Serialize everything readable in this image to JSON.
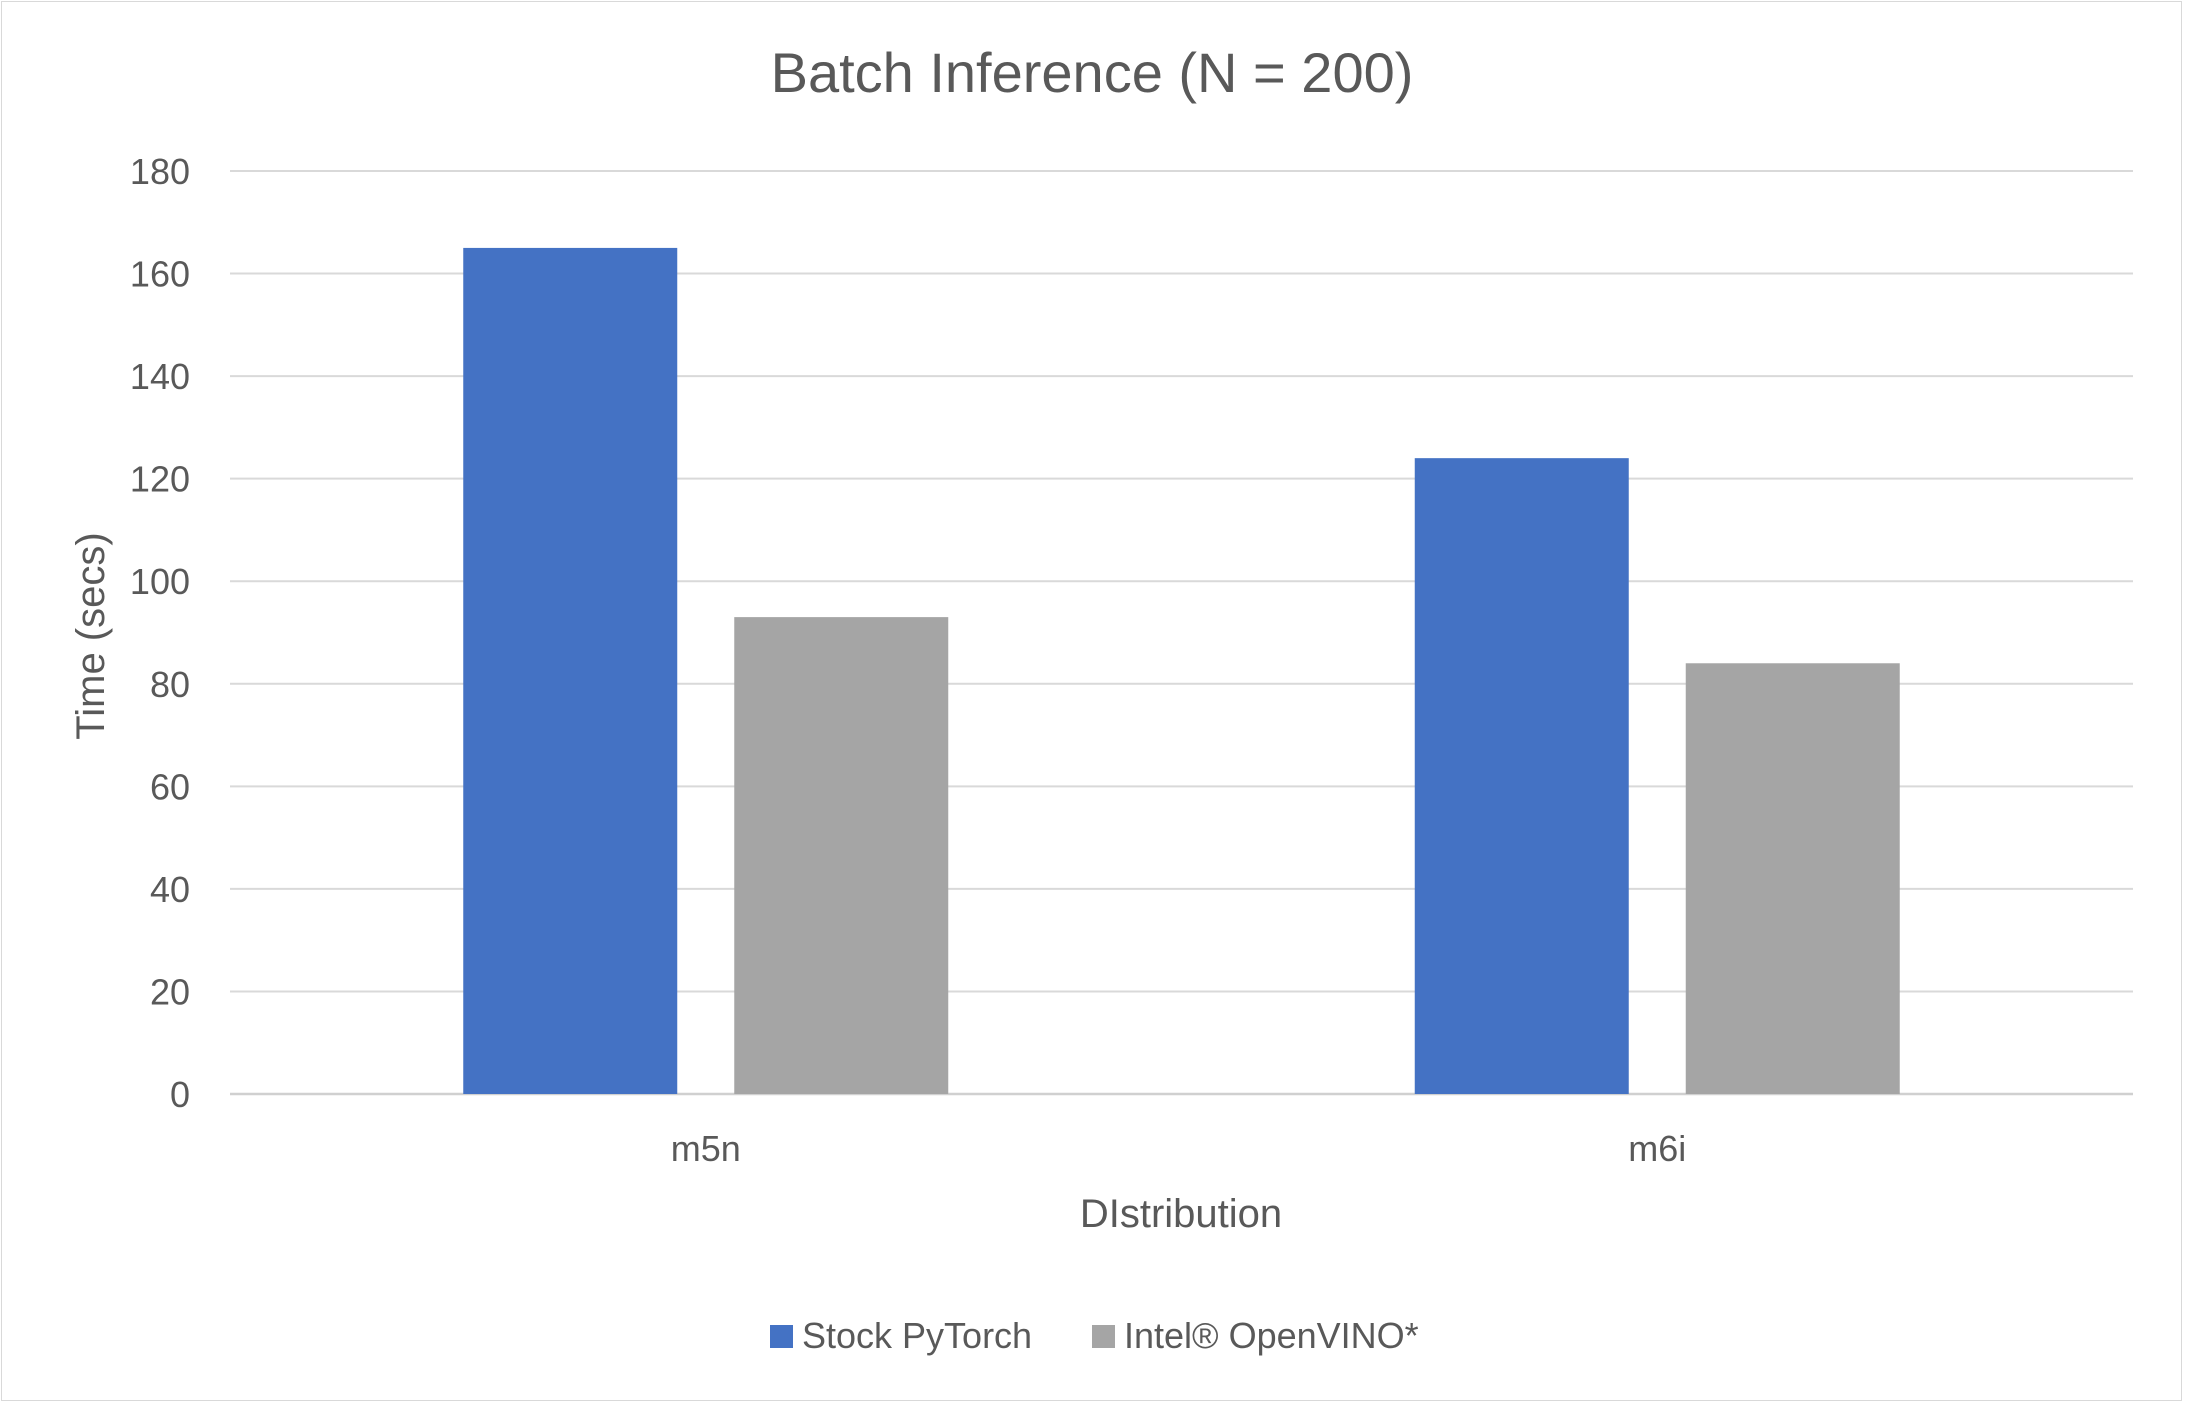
{
  "chart_data": {
    "type": "bar",
    "title": "Batch Inference (N = 200)",
    "xlabel": "DIstribution",
    "ylabel": "Time (secs)",
    "categories": [
      "m5n",
      "m6i"
    ],
    "series": [
      {
        "name": "Stock PyTorch",
        "values": [
          165,
          124
        ],
        "color": "#4472C4"
      },
      {
        "name": "Intel® OpenVINO*",
        "values": [
          93,
          84
        ],
        "color": "#A5A5A5"
      }
    ],
    "ylim": [
      0,
      180
    ],
    "yticks": [
      0,
      20,
      40,
      60,
      80,
      100,
      120,
      140,
      160,
      180
    ],
    "grid": true,
    "legend": "bottom-center"
  }
}
